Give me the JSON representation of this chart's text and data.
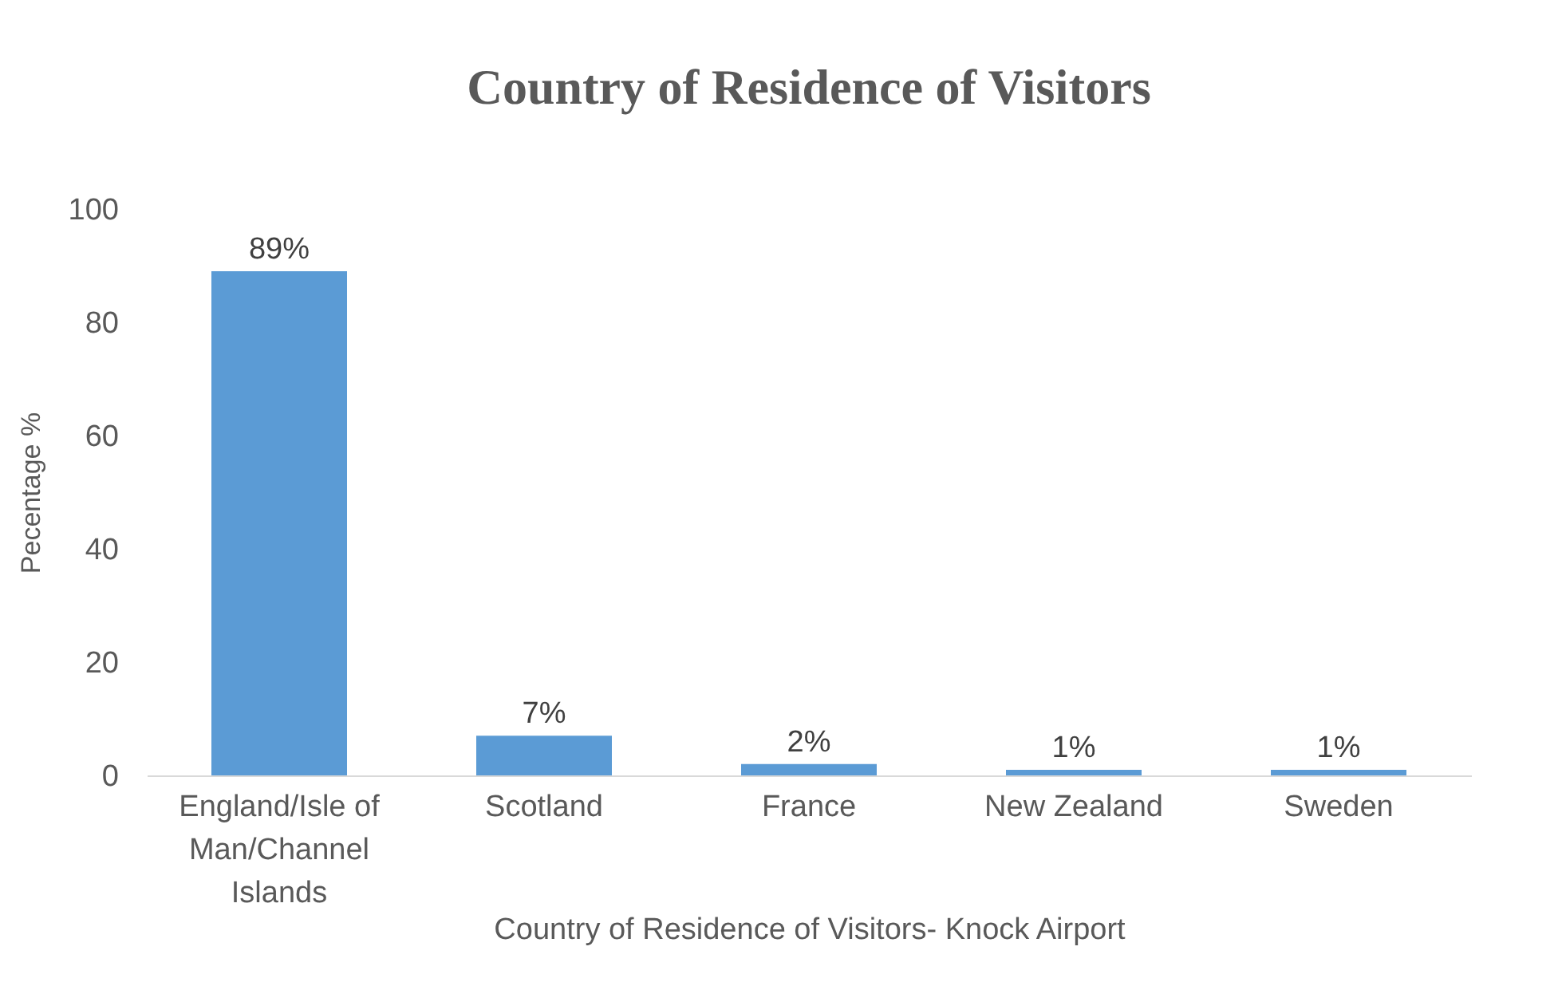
{
  "chart_data": {
    "type": "bar",
    "title": "Country of  Residence of Visitors",
    "categories": [
      "England/Isle of Man/Channel Islands",
      "Scotland",
      "France",
      "New Zealand",
      "Sweden"
    ],
    "values": [
      89,
      7,
      2,
      1,
      1
    ],
    "value_labels": [
      "89%",
      "7%",
      "2%",
      "1%",
      "1%"
    ],
    "color": "#5b9bd5",
    "xlabel": "Country of Residence of Visitors- Knock Airport",
    "ylabel": "Pecentage %",
    "ylim": [
      0,
      100
    ],
    "yticks": [
      0,
      20,
      40,
      60,
      80,
      100
    ],
    "grid": false
  }
}
